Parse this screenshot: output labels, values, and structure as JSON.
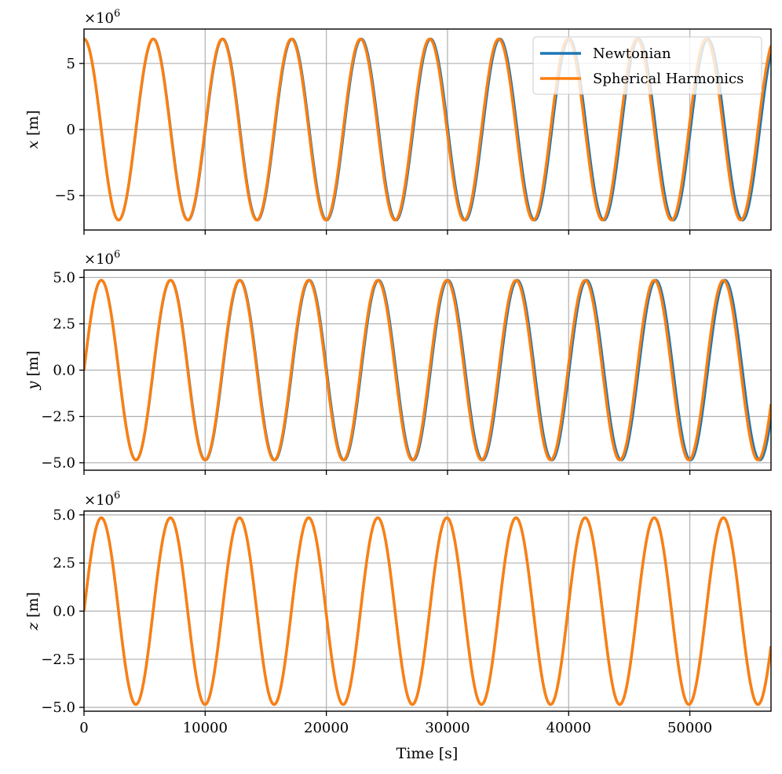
{
  "chart_data": {
    "type": "line",
    "xlabel": "Time [s]",
    "xlim": [
      0,
      56700
    ],
    "xticks": [
      0,
      10000,
      20000,
      30000,
      40000,
      50000
    ],
    "xtick_labels": [
      "0",
      "10000",
      "20000",
      "30000",
      "40000",
      "50000"
    ],
    "legend": {
      "placement": "top-right",
      "entries": [
        "Newtonian",
        "Spherical Harmonics"
      ]
    },
    "grid": true,
    "colors": {
      "Newtonian": "#1f77b4",
      "Spherical Harmonics": "#ff7f0e"
    },
    "subplots": [
      {
        "ylabel": "x [m]",
        "ylabel_var": "x",
        "ylabel_unit": " [m]",
        "scale_label": "×10",
        "scale_exponent": "6",
        "ylim": [
          -7.6,
          7.6
        ],
        "yticks": [
          -5,
          0,
          5
        ],
        "ytick_labels": [
          "−5",
          "0",
          "5"
        ],
        "series": [
          {
            "name": "Newtonian",
            "function": "cos",
            "amplitude": 6.85,
            "period": 5720
          },
          {
            "name": "Spherical Harmonics",
            "function": "cos",
            "amplitude": 6.85,
            "period": 5705
          }
        ]
      },
      {
        "ylabel": "y [m]",
        "ylabel_var": "y",
        "ylabel_unit": " [m]",
        "scale_label": "×10",
        "scale_exponent": "6",
        "ylim": [
          -5.4,
          5.4
        ],
        "yticks": [
          -5,
          -2.5,
          0,
          2.5,
          5
        ],
        "ytick_labels": [
          "−5.0",
          "−2.5",
          "0.0",
          "2.5",
          "5.0"
        ],
        "series": [
          {
            "name": "Newtonian",
            "function": "sin",
            "amplitude": 4.85,
            "period": 5720
          },
          {
            "name": "Spherical Harmonics",
            "function": "sin",
            "amplitude": 4.85,
            "period": 5705
          }
        ]
      },
      {
        "ylabel": "z [m]",
        "ylabel_var": "z",
        "ylabel_unit": " [m]",
        "scale_label": "×10",
        "scale_exponent": "6",
        "ylim": [
          -5.2,
          5.2
        ],
        "yticks": [
          -5,
          -2.5,
          0,
          2.5,
          5
        ],
        "ytick_labels": [
          "−5.0",
          "−2.5",
          "0.0",
          "2.5",
          "5.0"
        ],
        "series": [
          {
            "name": "Newtonian",
            "function": "sin",
            "amplitude": 4.85,
            "period": 5705
          },
          {
            "name": "Spherical Harmonics",
            "function": "sin",
            "amplitude": 4.85,
            "period": 5705
          }
        ]
      }
    ]
  }
}
